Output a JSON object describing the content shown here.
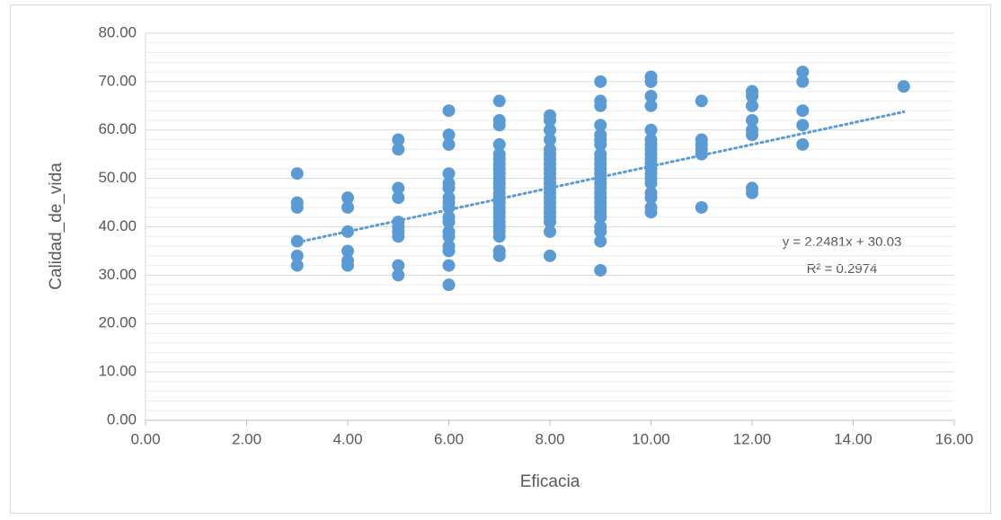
{
  "chart_data": {
    "type": "scatter",
    "x_label": "Eficacia",
    "y_label": "Calidad_de_vida",
    "color": "#5b9bd5",
    "x": [
      3,
      3,
      3,
      3,
      3,
      3,
      4,
      4,
      4,
      4,
      4,
      4,
      5,
      5,
      5,
      5,
      5,
      5,
      5,
      5,
      5,
      5,
      6,
      6,
      6,
      6,
      6,
      6,
      6,
      6,
      6,
      6,
      6,
      6,
      6,
      6,
      6,
      6,
      6,
      7,
      7,
      7,
      7,
      7,
      7,
      7,
      7,
      7,
      7,
      7,
      7,
      7,
      7,
      7,
      7,
      7,
      7,
      7,
      7,
      7,
      7,
      7,
      7,
      8,
      8,
      8,
      8,
      8,
      8,
      8,
      8,
      8,
      8,
      8,
      8,
      8,
      8,
      8,
      8,
      8,
      8,
      8,
      8,
      8,
      8,
      9,
      9,
      9,
      9,
      9,
      9,
      9,
      9,
      9,
      9,
      9,
      9,
      9,
      9,
      9,
      9,
      9,
      9,
      9,
      9,
      9,
      9,
      9,
      9,
      9,
      10,
      10,
      10,
      10,
      10,
      10,
      10,
      10,
      10,
      10,
      10,
      10,
      10,
      10,
      10,
      10,
      10,
      10,
      10,
      11,
      11,
      11,
      11,
      11,
      11,
      12,
      12,
      12,
      12,
      12,
      12,
      12,
      12,
      13,
      13,
      13,
      13,
      13,
      15
    ],
    "values": [
      51,
      45,
      44,
      37,
      34,
      32,
      46,
      44,
      39,
      35,
      33,
      32,
      58,
      56,
      48,
      46,
      41,
      40,
      39,
      38,
      32,
      30,
      64,
      59,
      57,
      51,
      49,
      48,
      46,
      45,
      44,
      42,
      41,
      39,
      38,
      36,
      35,
      32,
      28,
      66,
      62,
      61,
      57,
      55,
      54,
      53,
      52,
      51,
      50,
      49,
      48,
      47,
      46,
      45,
      44,
      43,
      42,
      41,
      40,
      39,
      38,
      35,
      34,
      63,
      62,
      60,
      58,
      56,
      55,
      54,
      53,
      52,
      51,
      50,
      49,
      48,
      47,
      46,
      45,
      44,
      43,
      42,
      41,
      39,
      34,
      70,
      66,
      65,
      61,
      59,
      58,
      57,
      55,
      54,
      53,
      52,
      51,
      50,
      49,
      48,
      47,
      46,
      45,
      44,
      43,
      42,
      40,
      39,
      37,
      31,
      71,
      70,
      67,
      65,
      60,
      58,
      57,
      56,
      55,
      54,
      53,
      52,
      51,
      50,
      49,
      47,
      46,
      44,
      43,
      66,
      58,
      57,
      56,
      55,
      44,
      68,
      67,
      65,
      62,
      60,
      59,
      48,
      47,
      72,
      70,
      64,
      61,
      57,
      69
    ],
    "trendline": {
      "slope": 2.2481,
      "intercept": 30.03,
      "x_range": [
        3,
        15
      ],
      "equation": "y = 2.2481x + 30.03",
      "r2": "R² = 0.2974"
    },
    "xlim": [
      0,
      16
    ],
    "xticks": [
      {
        "value": 0,
        "label": "0.00"
      },
      {
        "value": 2,
        "label": "2.00"
      },
      {
        "value": 4,
        "label": "4.00"
      },
      {
        "value": 6,
        "label": "6.00"
      },
      {
        "value": 8,
        "label": "8.00"
      },
      {
        "value": 10,
        "label": "10.00"
      },
      {
        "value": 12,
        "label": "12.00"
      },
      {
        "value": 14,
        "label": "14.00"
      },
      {
        "value": 16,
        "label": "16.00"
      }
    ],
    "ylim": [
      0,
      80
    ],
    "yticks": [
      {
        "value": 0,
        "label": "0.00"
      },
      {
        "value": 10,
        "label": "10.00"
      },
      {
        "value": 20,
        "label": "20.00"
      },
      {
        "value": 30,
        "label": "30.00"
      },
      {
        "value": 40,
        "label": "40.00"
      },
      {
        "value": 50,
        "label": "50.00"
      },
      {
        "value": 60,
        "label": "60.00"
      },
      {
        "value": 70,
        "label": "70.00"
      },
      {
        "value": 80,
        "label": "80.00"
      }
    ],
    "grid": true,
    "minor_grid": true
  }
}
